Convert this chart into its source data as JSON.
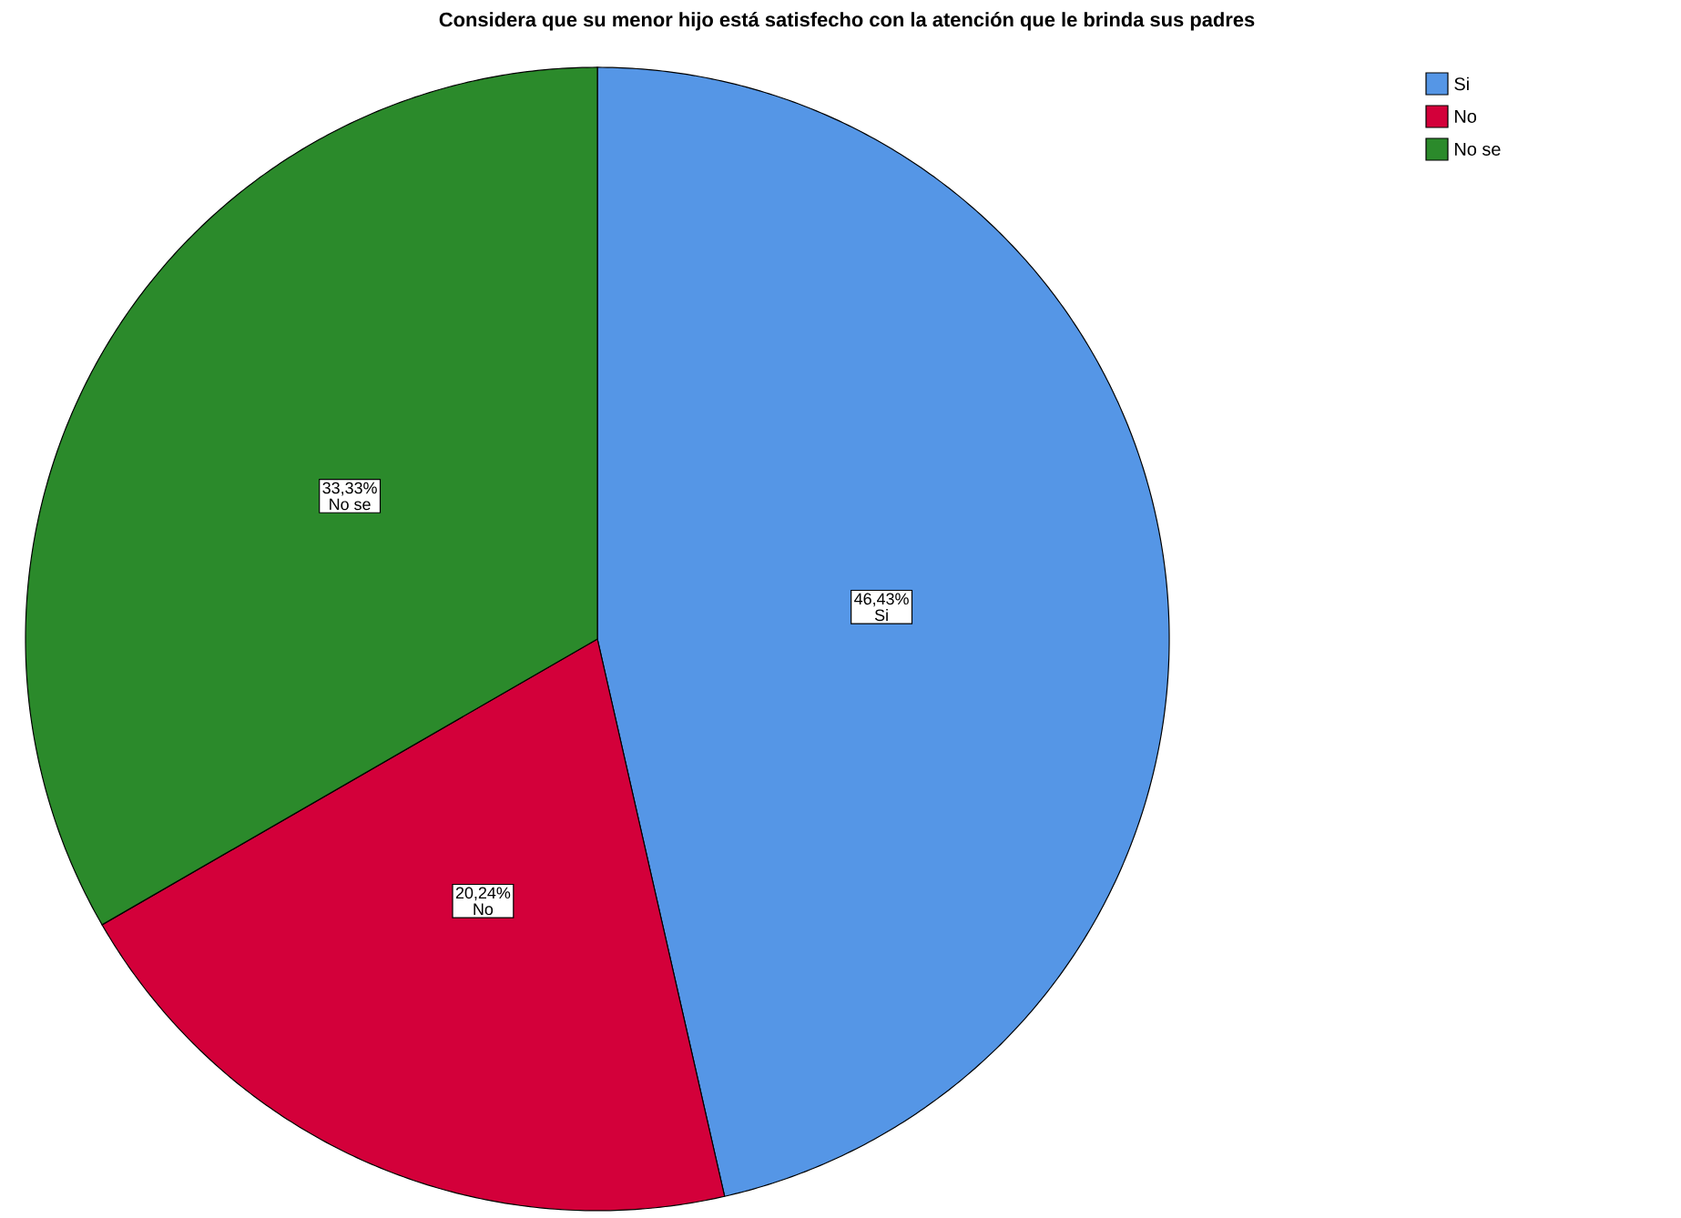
{
  "chart_data": {
    "type": "pie",
    "title": "Considera que su menor hijo está satisfecho con la atención que le brinda sus padres",
    "categories": [
      "Si",
      "No",
      "No se"
    ],
    "values": [
      46.43,
      20.24,
      33.33
    ],
    "colors": [
      "#5596e6",
      "#d3003a",
      "#2b8a2b"
    ],
    "value_labels": [
      "46,43%",
      "20,24%",
      "33,33%"
    ],
    "legend": "top right"
  }
}
